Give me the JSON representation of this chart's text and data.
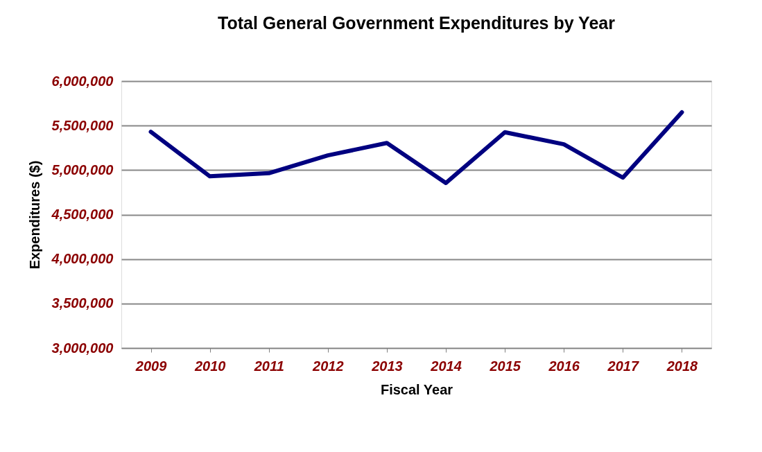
{
  "chart_data": {
    "type": "line",
    "title": "Total General Government Expenditures by Year",
    "xlabel": "Fiscal Year",
    "ylabel": "Expenditures ($)",
    "categories": [
      "2009",
      "2010",
      "2011",
      "2012",
      "2013",
      "2014",
      "2015",
      "2016",
      "2017",
      "2018"
    ],
    "series": [
      {
        "color": "#000080",
        "values": [
          5430000,
          4930000,
          4965000,
          5165000,
          5305000,
          4855000,
          5425000,
          5290000,
          4915000,
          5650000
        ]
      }
    ],
    "ylim": [
      3000000,
      6000000
    ],
    "yticks": [
      {
        "value": 3000000,
        "label": "3,000,000"
      },
      {
        "value": 3500000,
        "label": "3,500,000"
      },
      {
        "value": 4000000,
        "label": "4,000,000"
      },
      {
        "value": 4500000,
        "label": "4,500,000"
      },
      {
        "value": 5000000,
        "label": "5,000,000"
      },
      {
        "value": 5500000,
        "label": "5,500,000"
      },
      {
        "value": 6000000,
        "label": "6,000,000"
      }
    ],
    "grid": "y",
    "legend": false,
    "marker": "none",
    "line_style": "solid"
  }
}
